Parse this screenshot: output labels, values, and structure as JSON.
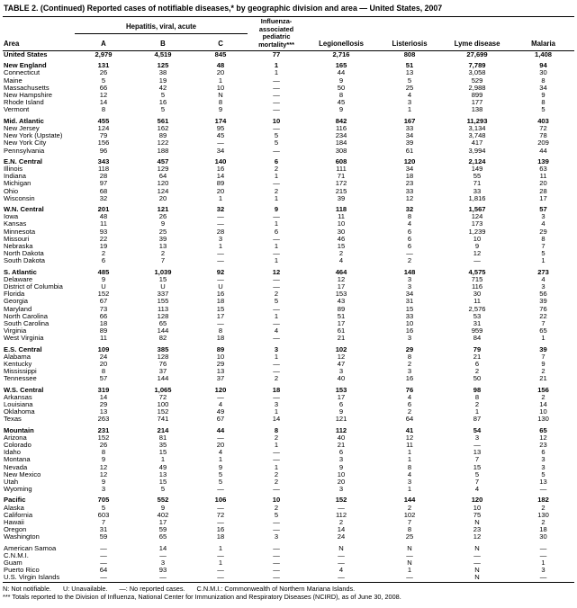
{
  "title": "TABLE 2. (Continued) Reported cases of notifiable diseases,* by geographic division and area — United States, 2007",
  "table": {
    "header": {
      "area": "Area",
      "hepatitis_group": "Hepatitis, viral, acute",
      "hep_a": "A",
      "hep_b": "B",
      "hep_c": "C",
      "influenza": "Influenza-associated pediatric mortality***",
      "legionellosis": "Legionellosis",
      "listeriosis": "Listeriosis",
      "lyme": "Lyme disease",
      "malaria": "Malaria"
    },
    "sections": [
      {
        "rows": [
          {
            "area": "United States",
            "division": true,
            "values": [
              "2,979",
              "4,519",
              "845",
              "77",
              "2,716",
              "808",
              "27,699",
              "1,408"
            ]
          }
        ]
      },
      {
        "rows": [
          {
            "area": "New England",
            "division": true,
            "values": [
              "131",
              "125",
              "48",
              "1",
              "165",
              "51",
              "7,789",
              "94"
            ]
          },
          {
            "area": "Connecticut",
            "values": [
              "26",
              "38",
              "20",
              "1",
              "44",
              "13",
              "3,058",
              "30"
            ]
          },
          {
            "area": "Maine",
            "values": [
              "5",
              "19",
              "1",
              "—",
              "9",
              "5",
              "529",
              "8"
            ]
          },
          {
            "area": "Massachusetts",
            "values": [
              "66",
              "42",
              "10",
              "—",
              "50",
              "25",
              "2,988",
              "34"
            ]
          },
          {
            "area": "New Hampshire",
            "values": [
              "12",
              "5",
              "N",
              "—",
              "8",
              "4",
              "899",
              "9"
            ]
          },
          {
            "area": "Rhode Island",
            "values": [
              "14",
              "16",
              "8",
              "—",
              "45",
              "3",
              "177",
              "8"
            ]
          },
          {
            "area": "Vermont",
            "values": [
              "8",
              "5",
              "9",
              "—",
              "9",
              "1",
              "138",
              "5"
            ]
          }
        ]
      },
      {
        "rows": [
          {
            "area": "Mid. Atlantic",
            "division": true,
            "values": [
              "455",
              "561",
              "174",
              "10",
              "842",
              "167",
              "11,293",
              "403"
            ]
          },
          {
            "area": "New Jersey",
            "values": [
              "124",
              "162",
              "95",
              "—",
              "116",
              "33",
              "3,134",
              "72"
            ]
          },
          {
            "area": "New York (Upstate)",
            "values": [
              "79",
              "89",
              "45",
              "5",
              "234",
              "34",
              "3,748",
              "78"
            ]
          },
          {
            "area": "New York City",
            "values": [
              "156",
              "122",
              "—",
              "5",
              "184",
              "39",
              "417",
              "209"
            ]
          },
          {
            "area": "Pennsylvania",
            "values": [
              "96",
              "188",
              "34",
              "—",
              "308",
              "61",
              "3,994",
              "44"
            ]
          }
        ]
      },
      {
        "rows": [
          {
            "area": "E.N. Central",
            "division": true,
            "values": [
              "343",
              "457",
              "140",
              "6",
              "608",
              "120",
              "2,124",
              "139"
            ]
          },
          {
            "area": "Illinois",
            "values": [
              "118",
              "129",
              "16",
              "2",
              "111",
              "34",
              "149",
              "63"
            ]
          },
          {
            "area": "Indiana",
            "values": [
              "28",
              "64",
              "14",
              "1",
              "71",
              "18",
              "55",
              "11"
            ]
          },
          {
            "area": "Michigan",
            "values": [
              "97",
              "120",
              "89",
              "—",
              "172",
              "23",
              "71",
              "20"
            ]
          },
          {
            "area": "Ohio",
            "values": [
              "68",
              "124",
              "20",
              "2",
              "215",
              "33",
              "33",
              "28"
            ]
          },
          {
            "area": "Wisconsin",
            "values": [
              "32",
              "20",
              "1",
              "1",
              "39",
              "12",
              "1,816",
              "17"
            ]
          }
        ]
      },
      {
        "rows": [
          {
            "area": "W.N. Central",
            "division": true,
            "values": [
              "201",
              "121",
              "32",
              "9",
              "118",
              "32",
              "1,567",
              "57"
            ]
          },
          {
            "area": "Iowa",
            "values": [
              "48",
              "26",
              "—",
              "—",
              "11",
              "8",
              "124",
              "3"
            ]
          },
          {
            "area": "Kansas",
            "values": [
              "11",
              "9",
              "—",
              "1",
              "10",
              "4",
              "173",
              "4"
            ]
          },
          {
            "area": "Minnesota",
            "values": [
              "93",
              "25",
              "28",
              "6",
              "30",
              "6",
              "1,239",
              "29"
            ]
          },
          {
            "area": "Missouri",
            "values": [
              "22",
              "39",
              "3",
              "—",
              "46",
              "6",
              "10",
              "8"
            ]
          },
          {
            "area": "Nebraska",
            "values": [
              "19",
              "13",
              "1",
              "1",
              "15",
              "6",
              "9",
              "7"
            ]
          },
          {
            "area": "North Dakota",
            "values": [
              "2",
              "2",
              "—",
              "—",
              "2",
              "—",
              "12",
              "5"
            ]
          },
          {
            "area": "South Dakota",
            "values": [
              "6",
              "7",
              "—",
              "1",
              "4",
              "2",
              "—",
              "1"
            ]
          }
        ]
      },
      {
        "rows": [
          {
            "area": "S. Atlantic",
            "division": true,
            "values": [
              "485",
              "1,039",
              "92",
              "12",
              "464",
              "148",
              "4,575",
              "273"
            ]
          },
          {
            "area": "Delaware",
            "values": [
              "9",
              "15",
              "—",
              "—",
              "12",
              "3",
              "715",
              "4"
            ]
          },
          {
            "area": "District of Columbia",
            "values": [
              "U",
              "U",
              "U",
              "—",
              "17",
              "3",
              "116",
              "3"
            ]
          },
          {
            "area": "Florida",
            "values": [
              "152",
              "337",
              "16",
              "2",
              "153",
              "34",
              "30",
              "56"
            ]
          },
          {
            "area": "Georgia",
            "values": [
              "67",
              "155",
              "18",
              "5",
              "43",
              "31",
              "11",
              "39"
            ]
          },
          {
            "area": "Maryland",
            "values": [
              "73",
              "113",
              "15",
              "—",
              "89",
              "15",
              "2,576",
              "76"
            ]
          },
          {
            "area": "North Carolina",
            "values": [
              "66",
              "128",
              "17",
              "1",
              "51",
              "33",
              "53",
              "22"
            ]
          },
          {
            "area": "South Carolina",
            "values": [
              "18",
              "65",
              "—",
              "—",
              "17",
              "10",
              "31",
              "7"
            ]
          },
          {
            "area": "Virginia",
            "values": [
              "89",
              "144",
              "8",
              "4",
              "61",
              "16",
              "959",
              "65"
            ]
          },
          {
            "area": "West Virginia",
            "values": [
              "11",
              "82",
              "18",
              "—",
              "21",
              "3",
              "84",
              "1"
            ]
          }
        ]
      },
      {
        "rows": [
          {
            "area": "E.S. Central",
            "division": true,
            "values": [
              "109",
              "385",
              "89",
              "3",
              "102",
              "29",
              "79",
              "39"
            ]
          },
          {
            "area": "Alabama",
            "values": [
              "24",
              "128",
              "10",
              "1",
              "12",
              "8",
              "21",
              "7"
            ]
          },
          {
            "area": "Kentucky",
            "values": [
              "20",
              "76",
              "29",
              "—",
              "47",
              "2",
              "6",
              "9"
            ]
          },
          {
            "area": "Mississippi",
            "values": [
              "8",
              "37",
              "13",
              "—",
              "3",
              "3",
              "2",
              "2"
            ]
          },
          {
            "area": "Tennessee",
            "values": [
              "57",
              "144",
              "37",
              "2",
              "40",
              "16",
              "50",
              "21"
            ]
          }
        ]
      },
      {
        "rows": [
          {
            "area": "W.S. Central",
            "division": true,
            "values": [
              "319",
              "1,065",
              "120",
              "18",
              "153",
              "76",
              "98",
              "156"
            ]
          },
          {
            "area": "Arkansas",
            "values": [
              "14",
              "72",
              "—",
              "—",
              "17",
              "4",
              "8",
              "2"
            ]
          },
          {
            "area": "Louisiana",
            "values": [
              "29",
              "100",
              "4",
              "3",
              "6",
              "6",
              "2",
              "14"
            ]
          },
          {
            "area": "Oklahoma",
            "values": [
              "13",
              "152",
              "49",
              "1",
              "9",
              "2",
              "1",
              "10"
            ]
          },
          {
            "area": "Texas",
            "values": [
              "263",
              "741",
              "67",
              "14",
              "121",
              "64",
              "87",
              "130"
            ]
          }
        ]
      },
      {
        "rows": [
          {
            "area": "Mountain",
            "division": true,
            "values": [
              "231",
              "214",
              "44",
              "8",
              "112",
              "41",
              "54",
              "65"
            ]
          },
          {
            "area": "Arizona",
            "values": [
              "152",
              "81",
              "—",
              "2",
              "40",
              "12",
              "3",
              "12"
            ]
          },
          {
            "area": "Colorado",
            "values": [
              "26",
              "35",
              "20",
              "1",
              "21",
              "11",
              "—",
              "23"
            ]
          },
          {
            "area": "Idaho",
            "values": [
              "8",
              "15",
              "4",
              "—",
              "6",
              "1",
              "13",
              "6"
            ]
          },
          {
            "area": "Montana",
            "values": [
              "9",
              "1",
              "1",
              "—",
              "3",
              "1",
              "7",
              "3"
            ]
          },
          {
            "area": "Nevada",
            "values": [
              "12",
              "49",
              "9",
              "1",
              "9",
              "8",
              "15",
              "3"
            ]
          },
          {
            "area": "New Mexico",
            "values": [
              "12",
              "13",
              "5",
              "2",
              "10",
              "4",
              "5",
              "5"
            ]
          },
          {
            "area": "Utah",
            "values": [
              "9",
              "15",
              "5",
              "2",
              "20",
              "3",
              "7",
              "13"
            ]
          },
          {
            "area": "Wyoming",
            "values": [
              "3",
              "5",
              "—",
              "—",
              "3",
              "1",
              "4",
              "—"
            ]
          }
        ]
      },
      {
        "rows": [
          {
            "area": "Pacific",
            "division": true,
            "values": [
              "705",
              "552",
              "106",
              "10",
              "152",
              "144",
              "120",
              "182"
            ]
          },
          {
            "area": "Alaska",
            "values": [
              "5",
              "9",
              "—",
              "2",
              "—",
              "2",
              "10",
              "2"
            ]
          },
          {
            "area": "California",
            "values": [
              "603",
              "402",
              "72",
              "5",
              "112",
              "102",
              "75",
              "130"
            ]
          },
          {
            "area": "Hawaii",
            "values": [
              "7",
              "17",
              "—",
              "—",
              "2",
              "7",
              "N",
              "2"
            ]
          },
          {
            "area": "Oregon",
            "values": [
              "31",
              "59",
              "16",
              "—",
              "14",
              "8",
              "23",
              "18"
            ]
          },
          {
            "area": "Washington",
            "values": [
              "59",
              "65",
              "18",
              "3",
              "24",
              "25",
              "12",
              "30"
            ]
          }
        ]
      },
      {
        "rows": [
          {
            "area": "American Samoa",
            "values": [
              "—",
              "14",
              "1",
              "—",
              "N",
              "N",
              "N",
              "—"
            ]
          },
          {
            "area": "C.N.M.I.",
            "values": [
              "—",
              "—",
              "—",
              "—",
              "—",
              "—",
              "—",
              "—"
            ]
          },
          {
            "area": "Guam",
            "values": [
              "—",
              "3",
              "1",
              "—",
              "—",
              "N",
              "—",
              "1"
            ]
          },
          {
            "area": "Puerto Rico",
            "values": [
              "64",
              "93",
              "—",
              "—",
              "4",
              "1",
              "N",
              "3"
            ]
          },
          {
            "area": "U.S. Virgin Islands",
            "values": [
              "—",
              "—",
              "—",
              "—",
              "—",
              "—",
              "N",
              "—"
            ]
          }
        ]
      }
    ]
  },
  "footnotes": {
    "not_notifiable": "N: Not notifiable.",
    "unavailable": "U: Unavailable.",
    "no_cases": "—: No reported cases.",
    "cnmi": "C.N.M.I.: Commonwealth of Northern Mariana Islands.",
    "influenza_note": "*** Totals reported to the Division of Influenza, National Center for Immunization and Respiratory Diseases (NCIRD), as of June 30, 2008."
  }
}
